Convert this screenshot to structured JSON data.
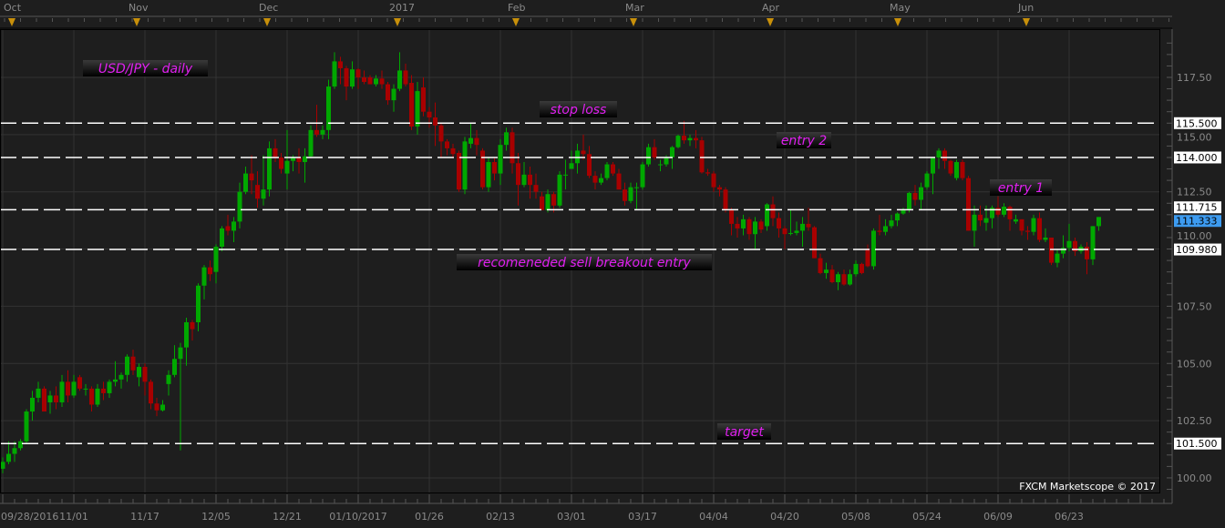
{
  "colors": {
    "background": "#1e1e1e",
    "grid": "#333333",
    "up": "#00a800",
    "down": "#a80000",
    "level_line": "#ffffff",
    "annotation_text": "#e020f0",
    "current_price_bg": "#3d9bf0",
    "marker": "#c8900a"
  },
  "watermark": "FXCM Marketscope © 2017",
  "chart_data": {
    "type": "candlestick",
    "title": "USD/JPY - daily",
    "ylim": [
      99.0,
      119.0
    ],
    "grid": true,
    "y_ticks": [
      "100.00",
      "102.50",
      "105.00",
      "107.50",
      "110.00",
      "112.50",
      "115.00",
      "117.50"
    ],
    "x_tick_labels": [
      "09/28/2016",
      "11/01",
      "11/17",
      "12/05",
      "12/21",
      "01/10/2017",
      "01/26",
      "02/13",
      "03/01",
      "03/17",
      "04/04",
      "04/20",
      "05/08",
      "05/24",
      "06/09",
      "06/23"
    ],
    "top_month_labels": [
      "Oct",
      "Nov",
      "Dec",
      "2017",
      "Feb",
      "Mar",
      "Apr",
      "May",
      "Jun"
    ],
    "current_price": "111.333",
    "levels": [
      {
        "value": 115.5,
        "label": "115.500",
        "annotation": "stop loss"
      },
      {
        "value": 114.0,
        "label": "114.000",
        "annotation": "entry 2"
      },
      {
        "value": 111.715,
        "label": "111.715",
        "annotation": "entry 1"
      },
      {
        "value": 109.98,
        "label": "109.980",
        "annotation": "recomeneded sell breakout entry"
      },
      {
        "value": 101.5,
        "label": "101.500",
        "annotation": "target"
      }
    ],
    "ohlc": [
      [
        100.4,
        100.9,
        100.2,
        100.7
      ],
      [
        100.7,
        101.6,
        100.6,
        101.05
      ],
      [
        101.05,
        101.6,
        100.7,
        101.3
      ],
      [
        101.3,
        101.7,
        101.2,
        101.6
      ],
      [
        101.6,
        103.0,
        101.5,
        102.9
      ],
      [
        102.9,
        103.8,
        102.5,
        103.5
      ],
      [
        103.5,
        104.2,
        103.3,
        103.9
      ],
      [
        103.9,
        104.0,
        102.9,
        102.9
      ],
      [
        103.3,
        103.8,
        102.8,
        103.6
      ],
      [
        103.6,
        104.0,
        103.0,
        103.3
      ],
      [
        103.3,
        104.5,
        103.1,
        104.2
      ],
      [
        104.2,
        104.7,
        103.3,
        103.6
      ],
      [
        103.6,
        104.5,
        103.5,
        104.2
      ],
      [
        104.4,
        104.5,
        103.8,
        103.9
      ],
      [
        103.9,
        104.1,
        103.6,
        103.9
      ],
      [
        103.9,
        104.0,
        102.9,
        103.2
      ],
      [
        103.2,
        104.1,
        103.1,
        103.9
      ],
      [
        103.9,
        104.2,
        103.4,
        103.7
      ],
      [
        103.7,
        104.3,
        103.5,
        104.2
      ],
      [
        104.2,
        105.1,
        104.0,
        104.3
      ],
      [
        104.3,
        104.6,
        103.9,
        104.5
      ],
      [
        104.5,
        105.4,
        104.2,
        105.3
      ],
      [
        105.3,
        105.6,
        104.5,
        104.7
      ],
      [
        104.4,
        105.0,
        104.0,
        104.85
      ],
      [
        104.85,
        105.0,
        103.6,
        104.2
      ],
      [
        104.2,
        104.3,
        103.0,
        103.25
      ],
      [
        103.25,
        103.5,
        102.7,
        102.95
      ],
      [
        102.95,
        103.4,
        102.9,
        103.2
      ],
      [
        104.1,
        104.7,
        103.6,
        104.5
      ],
      [
        104.5,
        105.8,
        104.4,
        105.2
      ],
      [
        105.2,
        105.9,
        101.2,
        105.7
      ],
      [
        105.7,
        107.0,
        104.9,
        106.8
      ],
      [
        106.8,
        106.9,
        106.0,
        106.5
      ],
      [
        106.8,
        108.5,
        106.4,
        108.4
      ],
      [
        108.4,
        109.3,
        107.8,
        109.2
      ],
      [
        109.2,
        109.5,
        108.6,
        108.9
      ],
      [
        109.0,
        110.2,
        108.5,
        110.1
      ],
      [
        110.1,
        111.0,
        109.9,
        110.9
      ],
      [
        111.0,
        111.5,
        110.6,
        110.8
      ],
      [
        110.8,
        111.4,
        110.3,
        111.2
      ],
      [
        111.2,
        112.9,
        110.9,
        112.5
      ],
      [
        112.5,
        113.6,
        112.4,
        113.3
      ],
      [
        113.3,
        114.1,
        112.4,
        113.0
      ],
      [
        112.8,
        113.4,
        111.8,
        112.2
      ],
      [
        112.2,
        114.1,
        111.9,
        112.6
      ],
      [
        112.6,
        114.7,
        112.3,
        114.4
      ],
      [
        114.4,
        114.8,
        113.8,
        114.0
      ],
      [
        114.0,
        114.2,
        113.3,
        113.5
      ],
      [
        113.3,
        115.2,
        112.6,
        113.85
      ],
      [
        113.85,
        114.1,
        113.4,
        114.0
      ],
      [
        114.0,
        114.4,
        113.3,
        113.8
      ],
      [
        113.8,
        114.4,
        112.9,
        114.05
      ],
      [
        114.05,
        115.4,
        114.0,
        115.2
      ],
      [
        115.2,
        116.3,
        114.9,
        115.0
      ],
      [
        115.0,
        115.4,
        114.8,
        115.2
      ],
      [
        115.2,
        117.4,
        114.8,
        117.1
      ],
      [
        117.1,
        118.6,
        117.0,
        118.2
      ],
      [
        118.2,
        118.4,
        117.2,
        117.9
      ],
      [
        117.9,
        118.0,
        116.5,
        117.1
      ],
      [
        117.1,
        118.2,
        117.0,
        117.85
      ],
      [
        117.85,
        117.9,
        117.0,
        117.5
      ],
      [
        117.5,
        117.8,
        117.2,
        117.3
      ],
      [
        117.5,
        117.6,
        117.2,
        117.2
      ],
      [
        117.2,
        117.6,
        117.1,
        117.45
      ],
      [
        117.45,
        117.8,
        117.0,
        117.2
      ],
      [
        117.2,
        117.3,
        116.3,
        116.5
      ],
      [
        116.5,
        117.2,
        116.0,
        117.0
      ],
      [
        117.0,
        118.6,
        116.9,
        117.8
      ],
      [
        117.8,
        118.1,
        117.1,
        117.2
      ],
      [
        117.26,
        117.6,
        115.2,
        115.35
      ],
      [
        115.35,
        117.3,
        115.0,
        116.9
      ],
      [
        117.06,
        117.5,
        115.8,
        116.0
      ],
      [
        116.0,
        116.2,
        115.3,
        115.75
      ],
      [
        115.75,
        116.4,
        114.5,
        115.4
      ],
      [
        115.4,
        115.5,
        114.0,
        114.7
      ],
      [
        114.7,
        114.8,
        114.1,
        114.4
      ],
      [
        114.4,
        114.6,
        114.0,
        114.15
      ],
      [
        114.2,
        114.3,
        112.5,
        112.6
      ],
      [
        112.6,
        114.9,
        112.4,
        114.7
      ],
      [
        114.6,
        115.5,
        114.4,
        114.85
      ],
      [
        114.85,
        115.2,
        114.1,
        114.55
      ],
      [
        114.3,
        114.4,
        112.6,
        112.7
      ],
      [
        112.7,
        114.0,
        112.5,
        113.8
      ],
      [
        113.8,
        114.0,
        113.0,
        113.3
      ],
      [
        113.3,
        114.8,
        112.8,
        114.55
      ],
      [
        114.55,
        115.3,
        114.3,
        115.1
      ],
      [
        115.1,
        115.3,
        113.3,
        113.75
      ],
      [
        113.75,
        114.2,
        111.9,
        112.8
      ],
      [
        112.8,
        113.8,
        112.7,
        113.25
      ],
      [
        113.25,
        113.6,
        112.2,
        112.8
      ],
      [
        112.8,
        113.3,
        112.2,
        112.5
      ],
      [
        112.3,
        112.5,
        111.7,
        111.7
      ],
      [
        111.7,
        112.6,
        111.6,
        112.4
      ],
      [
        112.4,
        112.5,
        111.6,
        111.9
      ],
      [
        111.9,
        113.4,
        111.8,
        113.25
      ],
      [
        113.25,
        113.9,
        112.6,
        113.25
      ],
      [
        113.5,
        114.3,
        113.5,
        113.75
      ],
      [
        113.75,
        114.6,
        113.3,
        114.3
      ],
      [
        114.3,
        115.0,
        113.9,
        114.15
      ],
      [
        114.15,
        114.5,
        113.1,
        113.2
      ],
      [
        113.2,
        113.4,
        112.6,
        112.9
      ],
      [
        112.9,
        113.3,
        112.8,
        113.1
      ],
      [
        113.1,
        113.8,
        113.0,
        113.7
      ],
      [
        113.7,
        113.8,
        113.2,
        113.3
      ],
      [
        113.3,
        113.5,
        112.6,
        112.6
      ],
      [
        112.6,
        112.9,
        111.9,
        112.1
      ],
      [
        112.1,
        112.9,
        112.0,
        112.7
      ],
      [
        112.7,
        112.9,
        111.7,
        112.7
      ],
      [
        112.7,
        113.8,
        112.6,
        113.7
      ],
      [
        113.7,
        114.6,
        113.6,
        114.45
      ],
      [
        114.45,
        114.8,
        113.9,
        114.0
      ],
      [
        113.7,
        113.9,
        113.4,
        113.7
      ],
      [
        113.7,
        114.1,
        113.6,
        114.0
      ],
      [
        114.0,
        114.5,
        113.5,
        114.45
      ],
      [
        114.45,
        115.0,
        114.4,
        114.95
      ],
      [
        114.95,
        115.6,
        114.6,
        114.75
      ],
      [
        114.75,
        115.0,
        114.5,
        114.85
      ],
      [
        114.85,
        115.2,
        114.4,
        114.75
      ],
      [
        114.75,
        114.9,
        113.3,
        113.35
      ],
      [
        113.35,
        113.5,
        113.2,
        113.3
      ],
      [
        113.3,
        113.4,
        112.5,
        112.7
      ],
      [
        112.7,
        112.8,
        112.3,
        112.6
      ],
      [
        112.6,
        112.7,
        111.6,
        111.7
      ],
      [
        111.7,
        111.8,
        110.6,
        111.1
      ],
      [
        111.1,
        111.4,
        110.5,
        110.9
      ],
      [
        110.9,
        111.5,
        110.6,
        111.3
      ],
      [
        111.3,
        111.4,
        110.4,
        110.65
      ],
      [
        110.65,
        111.4,
        110.0,
        111.2
      ],
      [
        111.2,
        111.3,
        110.7,
        110.85
      ],
      [
        111.0,
        112.0,
        110.8,
        111.95
      ],
      [
        111.95,
        112.3,
        111.0,
        111.35
      ],
      [
        111.35,
        111.6,
        110.5,
        110.9
      ],
      [
        110.9,
        111.0,
        110.0,
        110.65
      ],
      [
        110.7,
        111.7,
        110.6,
        110.7
      ],
      [
        110.7,
        111.2,
        110.6,
        110.8
      ],
      [
        110.8,
        111.4,
        110.1,
        111.1
      ],
      [
        111.1,
        111.8,
        110.8,
        110.95
      ],
      [
        110.95,
        111.0,
        109.6,
        109.6
      ],
      [
        109.6,
        109.8,
        108.9,
        108.95
      ],
      [
        108.95,
        109.4,
        108.7,
        109.1
      ],
      [
        109.1,
        109.3,
        108.5,
        108.55
      ],
      [
        108.55,
        109.0,
        108.2,
        108.9
      ],
      [
        108.9,
        109.1,
        108.4,
        108.45
      ],
      [
        108.45,
        109.1,
        108.4,
        108.9
      ],
      [
        108.9,
        109.5,
        108.8,
        109.35
      ],
      [
        109.35,
        109.4,
        108.9,
        108.95
      ],
      [
        110.0,
        110.2,
        109.2,
        109.25
      ],
      [
        109.25,
        110.9,
        109.1,
        110.8
      ],
      [
        110.8,
        111.5,
        110.6,
        110.75
      ],
      [
        110.75,
        111.3,
        110.6,
        111.0
      ],
      [
        111.0,
        111.5,
        110.9,
        111.25
      ],
      [
        111.25,
        111.6,
        111.0,
        111.55
      ],
      [
        111.55,
        111.8,
        111.5,
        111.7
      ],
      [
        111.7,
        112.5,
        111.6,
        112.45
      ],
      [
        112.45,
        112.8,
        111.9,
        112.15
      ],
      [
        112.15,
        112.9,
        111.7,
        112.7
      ],
      [
        112.7,
        113.4,
        112.6,
        113.3
      ],
      [
        113.3,
        114.0,
        112.4,
        114.0
      ],
      [
        114.0,
        114.4,
        113.5,
        114.3
      ],
      [
        114.3,
        114.4,
        113.5,
        113.85
      ],
      [
        113.85,
        113.9,
        113.2,
        113.3
      ],
      [
        113.1,
        113.9,
        113.0,
        113.8
      ],
      [
        113.8,
        113.9,
        113.0,
        113.1
      ],
      [
        113.1,
        113.2,
        110.8,
        110.8
      ],
      [
        110.8,
        111.9,
        110.1,
        111.5
      ],
      [
        111.5,
        111.9,
        111.0,
        111.25
      ],
      [
        111.15,
        111.9,
        110.8,
        111.35
      ],
      [
        111.35,
        111.9,
        110.9,
        111.8
      ],
      [
        111.8,
        112.3,
        111.4,
        111.5
      ],
      [
        111.5,
        112.0,
        111.4,
        111.85
      ],
      [
        111.85,
        111.9,
        110.8,
        111.3
      ],
      [
        111.2,
        111.5,
        111.1,
        111.3
      ],
      [
        111.3,
        111.3,
        110.6,
        110.8
      ],
      [
        110.8,
        111.0,
        110.4,
        110.75
      ],
      [
        110.75,
        111.5,
        110.6,
        111.35
      ],
      [
        111.35,
        111.6,
        110.3,
        110.4
      ],
      [
        110.4,
        110.9,
        110.3,
        110.5
      ],
      [
        110.5,
        110.5,
        109.3,
        109.4
      ],
      [
        109.4,
        110.0,
        109.2,
        109.8
      ],
      [
        109.8,
        110.6,
        109.6,
        110.05
      ],
      [
        110.05,
        111.1,
        109.9,
        110.35
      ],
      [
        110.35,
        110.5,
        109.7,
        109.9
      ],
      [
        109.9,
        110.2,
        109.8,
        110.1
      ],
      [
        110.1,
        110.3,
        108.9,
        109.55
      ],
      [
        109.55,
        111.0,
        109.3,
        111.0
      ],
      [
        111.0,
        111.4,
        110.8,
        111.4
      ]
    ]
  }
}
